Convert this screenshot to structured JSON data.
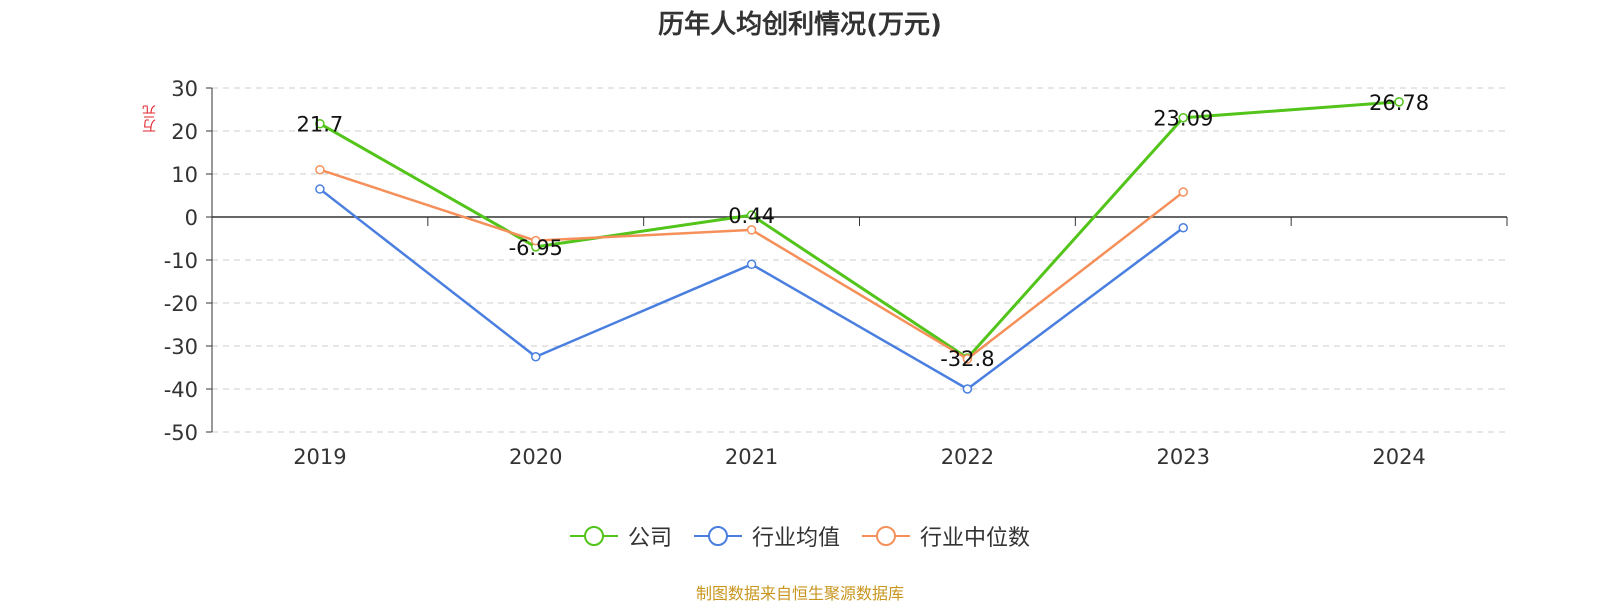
{
  "title": "历年人均创利情况(万元)",
  "source": "制图数据来自恒生聚源数据库",
  "chart_data": {
    "type": "line",
    "title": "历年人均创利情况(万元)",
    "ylabel": "万元",
    "xlabel": "",
    "categories": [
      "2019",
      "2020",
      "2021",
      "2022",
      "2023",
      "2024"
    ],
    "ylim": [
      -50,
      30
    ],
    "yticks": [
      30,
      20,
      10,
      0,
      -10,
      -20,
      -30,
      -40,
      -50
    ],
    "grid": true,
    "legend_position": "bottom",
    "series": [
      {
        "name": "公司",
        "color": "#52c41a",
        "values": [
          21.7,
          -6.95,
          0.44,
          -32.8,
          23.09,
          26.78
        ],
        "labels": [
          "21.7",
          "-6.95",
          "0.44",
          "-32.8",
          "23.09",
          "26.78"
        ]
      },
      {
        "name": "行业均值",
        "color": "#4a7fe0",
        "values": [
          6.5,
          -32.5,
          -11,
          -40,
          -2.5,
          null
        ]
      },
      {
        "name": "行业中位数",
        "color": "#f5905a",
        "values": [
          11,
          -5.5,
          -3,
          -33,
          5.8,
          null
        ]
      }
    ]
  }
}
